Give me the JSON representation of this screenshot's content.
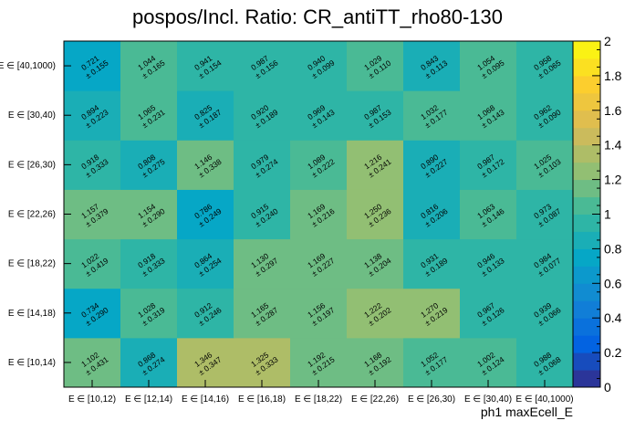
{
  "chart_data": {
    "type": "heatmap",
    "title": "pospos/Incl. Ratio: CR_antiTT_rho80-130",
    "xlabel": "ph1 maxEcell_E",
    "ylabel": "",
    "x_categories": [
      "E ∈ [10,12)",
      "E ∈ [12,14)",
      "E ∈ [14,16)",
      "E ∈ [16,18)",
      "E ∈ [18,22)",
      "E ∈ [22,26)",
      "E ∈ [26,30)",
      "E ∈ [30,40)",
      "E ∈ [40,1000)"
    ],
    "y_categories": [
      "E ∈ [10,14)",
      "E ∈ [14,18)",
      "E ∈ [18,22)",
      "E ∈ [22,26)",
      "E ∈ [26,30)",
      "E ∈ [30,40)",
      "E ∈ [40,1000)"
    ],
    "values": [
      [
        "1.102",
        "0.868",
        "1.346",
        "1.325",
        "1.192",
        "1.168",
        "1.052",
        "1.002",
        "0.988"
      ],
      [
        "0.734",
        "1.028",
        "0.912",
        "1.165",
        "1.156",
        "1.222",
        "1.270",
        "0.967",
        "0.939"
      ],
      [
        "1.022",
        "0.918",
        "0.864",
        "1.130",
        "1.169",
        "1.138",
        "0.931",
        "0.946",
        "0.984"
      ],
      [
        "1.157",
        "1.154",
        "0.786",
        "0.915",
        "1.169",
        "1.250",
        "0.816",
        "1.063",
        "0.973"
      ],
      [
        "0.918",
        "0.808",
        "1.146",
        "0.979",
        "1.089",
        "1.216",
        "0.890",
        "0.987",
        "1.025"
      ],
      [
        "0.894",
        "1.065",
        "0.825",
        "0.920",
        "0.969",
        "0.987",
        "1.032",
        "1.068",
        "0.962"
      ],
      [
        "0.721",
        "1.044",
        "0.941",
        "0.987",
        "0.940",
        "1.029",
        "0.843",
        "1.054",
        "0.958"
      ]
    ],
    "errors": [
      [
        "0.431",
        "0.274",
        "0.347",
        "0.333",
        "0.215",
        "0.192",
        "0.177",
        "0.124",
        "0.068"
      ],
      [
        "0.290",
        "0.319",
        "0.246",
        "0.287",
        "0.197",
        "0.202",
        "0.219",
        "0.126",
        "0.066"
      ],
      [
        "0.419",
        "0.333",
        "0.254",
        "0.297",
        "0.227",
        "0.204",
        "0.189",
        "0.133",
        "0.077"
      ],
      [
        "0.379",
        "0.290",
        "0.249",
        "0.240",
        "0.216",
        "0.236",
        "0.206",
        "0.146",
        "0.087"
      ],
      [
        "0.333",
        "0.275",
        "0.338",
        "0.274",
        "0.222",
        "0.241",
        "0.227",
        "0.172",
        "0.103"
      ],
      [
        "0.223",
        "0.231",
        "0.187",
        "0.189",
        "0.143",
        "0.153",
        "0.177",
        "0.143",
        "0.090"
      ],
      [
        "0.155",
        "0.165",
        "0.154",
        "0.156",
        "0.099",
        "0.110",
        "0.113",
        "0.095",
        "0.065"
      ]
    ],
    "zlim": [
      0,
      2
    ],
    "colorbar_ticks": [
      "0",
      "0.2",
      "0.4",
      "0.6",
      "0.8",
      "1",
      "1.2",
      "1.4",
      "1.6",
      "1.8",
      "2"
    ],
    "colorscale": [
      "#352a87",
      "#0363e1",
      "#1485d4",
      "#06a7c6",
      "#38b99e",
      "#92bf73",
      "#d9ba56",
      "#fcce2e",
      "#f9fb0e"
    ]
  }
}
